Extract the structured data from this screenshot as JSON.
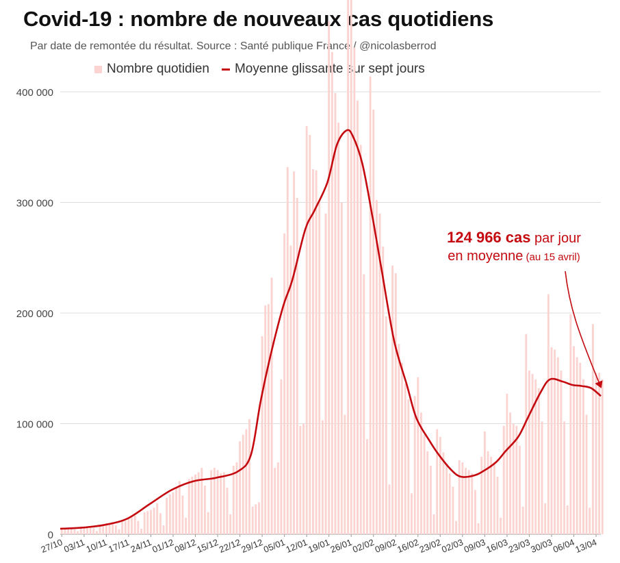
{
  "header": {
    "title": "Covid-19 : nombre de nouveaux cas quotidiens",
    "subtitle": "Par date de remontée du résultat. Source : Santé publique France / @nicolasberrod"
  },
  "legend": {
    "bars_label": "Nombre quotidien",
    "line_label": "Moyenne glissante sur sept jours"
  },
  "annotation": {
    "value": "124 966 cas",
    "rest": " par jour",
    "line2": "en moyenne",
    "note": " (au 15 avril)"
  },
  "colors": {
    "bars": "#fbd3d0",
    "line": "#c4090f",
    "grid": "#dddddd"
  },
  "chart_data": {
    "type": "bar",
    "start_date": "2021-10-27",
    "end_date": "2022-04-15",
    "y_ticks": [
      "0",
      "100 000",
      "200 000",
      "300 000",
      "400 000"
    ],
    "y_tick_values": [
      0,
      100000,
      200000,
      300000,
      400000
    ],
    "ylim": [
      0,
      400000
    ],
    "grid": true,
    "x_ticks": [
      "27/10",
      "03/11",
      "10/11",
      "17/11",
      "24/11",
      "01/12",
      "08/12",
      "15/12",
      "22/12",
      "29/12",
      "05/01",
      "12/01",
      "19/01",
      "26/01",
      "02/02",
      "09/02",
      "16/02",
      "23/02",
      "02/03",
      "09/03",
      "16/03",
      "23/03",
      "30/03",
      "06/04",
      "13/04"
    ],
    "moving_average_points": [
      [
        "2021-10-27",
        5000
      ],
      [
        "2021-11-03",
        6000
      ],
      [
        "2021-11-10",
        8500
      ],
      [
        "2021-11-17",
        14000
      ],
      [
        "2021-11-24",
        27000
      ],
      [
        "2021-12-01",
        40000
      ],
      [
        "2021-12-08",
        48000
      ],
      [
        "2021-12-15",
        51000
      ],
      [
        "2021-12-22",
        57000
      ],
      [
        "2021-12-26",
        72000
      ],
      [
        "2021-12-29",
        120000
      ],
      [
        "2022-01-01",
        160000
      ],
      [
        "2022-01-05",
        205000
      ],
      [
        "2022-01-08",
        230000
      ],
      [
        "2022-01-12",
        275000
      ],
      [
        "2022-01-15",
        293000
      ],
      [
        "2022-01-19",
        318000
      ],
      [
        "2022-01-22",
        352000
      ],
      [
        "2022-01-25",
        365000
      ],
      [
        "2022-01-27",
        360000
      ],
      [
        "2022-01-30",
        335000
      ],
      [
        "2022-02-02",
        290000
      ],
      [
        "2022-02-05",
        240000
      ],
      [
        "2022-02-09",
        175000
      ],
      [
        "2022-02-13",
        135000
      ],
      [
        "2022-02-16",
        105000
      ],
      [
        "2022-02-20",
        85000
      ],
      [
        "2022-02-23",
        72000
      ],
      [
        "2022-02-27",
        58000
      ],
      [
        "2022-03-02",
        52000
      ],
      [
        "2022-03-06",
        53000
      ],
      [
        "2022-03-09",
        57000
      ],
      [
        "2022-03-13",
        65000
      ],
      [
        "2022-03-16",
        75000
      ],
      [
        "2022-03-20",
        88000
      ],
      [
        "2022-03-23",
        105000
      ],
      [
        "2022-03-27",
        128000
      ],
      [
        "2022-03-30",
        140000
      ],
      [
        "2022-04-03",
        138000
      ],
      [
        "2022-04-06",
        135000
      ],
      [
        "2022-04-09",
        134000
      ],
      [
        "2022-04-12",
        132000
      ],
      [
        "2022-04-15",
        124966
      ]
    ],
    "daily_values": [
      6000,
      5500,
      5200,
      4800,
      4500,
      2800,
      7000,
      6800,
      6500,
      6000,
      5800,
      3000,
      8000,
      9000,
      10000,
      9500,
      11000,
      8000,
      4500,
      13000,
      12000,
      14000,
      15000,
      17000,
      12000,
      5000,
      20000,
      21000,
      22000,
      24000,
      28000,
      19000,
      8000,
      33000,
      36000,
      38000,
      42000,
      48000,
      35000,
      15000,
      50000,
      52000,
      54000,
      56000,
      60000,
      44000,
      20000,
      58000,
      60000,
      58000,
      55000,
      56000,
      42000,
      18000,
      62000,
      65000,
      84000,
      90000,
      95000,
      104000,
      25000,
      27000,
      29000,
      179000,
      207000,
      208000,
      232000,
      60000,
      65000,
      140000,
      272000,
      332000,
      261000,
      328000,
      304000,
      98000,
      100000,
      369000,
      361000,
      330000,
      329000,
      300000,
      103000,
      290000,
      464000,
      436000,
      399000,
      372000,
      300000,
      108000,
      501000,
      503000,
      440000,
      392000,
      352000,
      235000,
      86000,
      414000,
      384000,
      302000,
      290000,
      260000,
      197000,
      45000,
      243000,
      236000,
      172000,
      155000,
      136000,
      122000,
      37000,
      125000,
      142000,
      110000,
      90000,
      75000,
      62000,
      18000,
      95000,
      88000,
      74000,
      64000,
      55000,
      43000,
      12000,
      67000,
      65000,
      60000,
      58000,
      55000,
      40000,
      10000,
      70000,
      93000,
      75000,
      70000,
      65000,
      52000,
      15000,
      98000,
      127000,
      110000,
      100000,
      98000,
      80000,
      25000,
      181000,
      148000,
      145000,
      140000,
      132000,
      102000,
      28000,
      217000,
      169000,
      167000,
      160000,
      148000,
      102000,
      26000,
      199000,
      170000,
      160000,
      155000,
      140000,
      108000,
      24000,
      190000,
      146000,
      146000,
      140000
    ]
  }
}
